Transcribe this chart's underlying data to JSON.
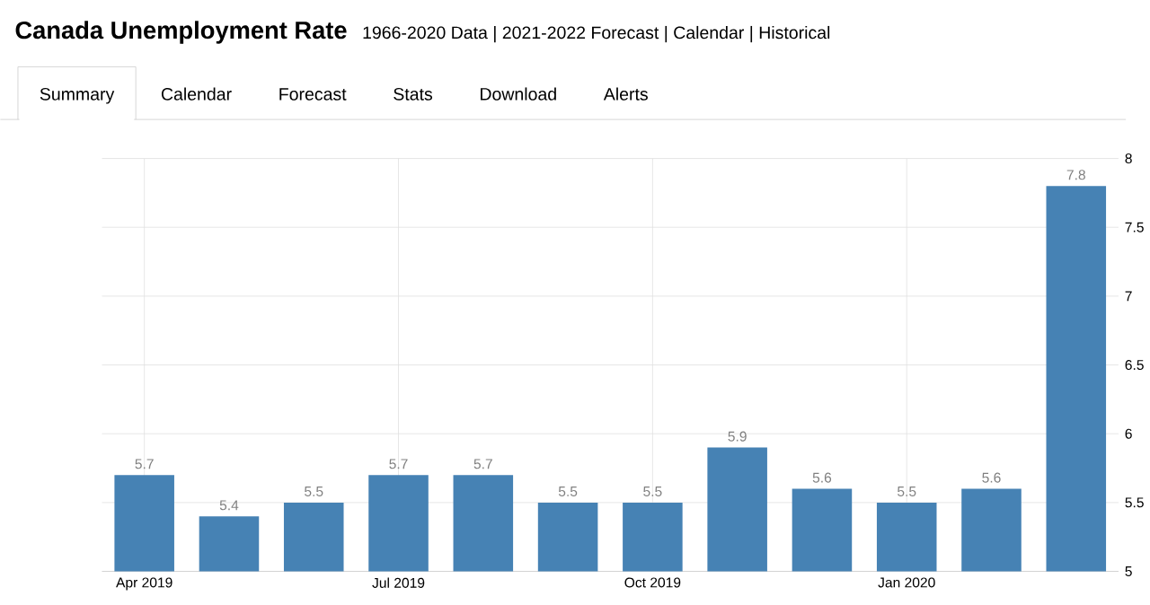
{
  "chart_data": {
    "type": "bar",
    "title": "Canada Unemployment Rate",
    "subtitle": "1966-2020 Data | 2021-2022 Forecast | Calendar | Historical",
    "annotations": [
      "Summary",
      "Calendar",
      "Forecast",
      "Stats",
      "Download",
      "Alerts"
    ],
    "categories": [
      "Apr 2019",
      null,
      null,
      "Jul 2019",
      null,
      null,
      "Oct 2019",
      null,
      null,
      "Jan 2020",
      null,
      null
    ],
    "values": [
      5.7,
      5.4,
      5.5,
      5.7,
      5.7,
      5.5,
      5.5,
      5.9,
      5.6,
      5.5,
      5.6,
      7.8
    ],
    "color": "#4682b4",
    "ylim": [
      5,
      8
    ],
    "yticks": [
      5,
      5.5,
      6,
      6.5,
      7,
      7.5,
      8
    ],
    "grid": true,
    "data_labels": true
  }
}
